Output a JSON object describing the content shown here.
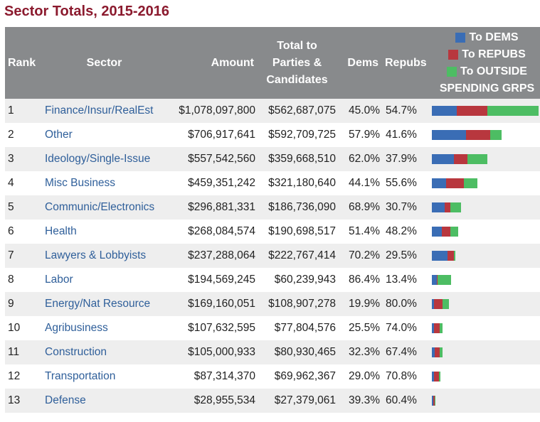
{
  "title": "Sector Totals, 2015-2016",
  "colors": {
    "dems": "#3a6db5",
    "repubs": "#b8373e",
    "outside": "#4dbd63"
  },
  "headers": {
    "rank": "Rank",
    "sector": "Sector",
    "amount": "Amount",
    "total_l1": "Total to",
    "total_l2": "Parties &",
    "total_l3": "Candidates",
    "dems": "Dems",
    "repubs": "Repubs",
    "legend_dems": "To DEMS",
    "legend_repubs": "To REPUBS",
    "legend_outside_l1": "To OUTSIDE",
    "legend_outside_l2": "SPENDING GRPS"
  },
  "rows": [
    {
      "rank": "1",
      "sector": "Finance/Insur/RealEst",
      "amount": "$1,078,097,800",
      "total": "$562,687,075",
      "dems": "45.0%",
      "repubs": "54.7%",
      "amount_value": 1078097800,
      "total_value": 562687075,
      "dems_pct": 45.0,
      "repubs_pct": 54.7
    },
    {
      "rank": "2",
      "sector": "Other",
      "amount": "$706,917,641",
      "total": "$592,709,725",
      "dems": "57.9%",
      "repubs": "41.6%",
      "amount_value": 706917641,
      "total_value": 592709725,
      "dems_pct": 57.9,
      "repubs_pct": 41.6
    },
    {
      "rank": "3",
      "sector": "Ideology/Single-Issue",
      "amount": "$557,542,560",
      "total": "$359,668,510",
      "dems": "62.0%",
      "repubs": "37.9%",
      "amount_value": 557542560,
      "total_value": 359668510,
      "dems_pct": 62.0,
      "repubs_pct": 37.9
    },
    {
      "rank": "4",
      "sector": "Misc Business",
      "amount": "$459,351,242",
      "total": "$321,180,640",
      "dems": "44.1%",
      "repubs": "55.6%",
      "amount_value": 459351242,
      "total_value": 321180640,
      "dems_pct": 44.1,
      "repubs_pct": 55.6
    },
    {
      "rank": "5",
      "sector": "Communic/Electronics",
      "amount": "$296,881,331",
      "total": "$186,736,090",
      "dems": "68.9%",
      "repubs": "30.7%",
      "amount_value": 296881331,
      "total_value": 186736090,
      "dems_pct": 68.9,
      "repubs_pct": 30.7
    },
    {
      "rank": "6",
      "sector": "Health",
      "amount": "$268,084,574",
      "total": "$190,698,517",
      "dems": "51.4%",
      "repubs": "48.2%",
      "amount_value": 268084574,
      "total_value": 190698517,
      "dems_pct": 51.4,
      "repubs_pct": 48.2
    },
    {
      "rank": "7",
      "sector": "Lawyers & Lobbyists",
      "amount": "$237,288,064",
      "total": "$222,767,414",
      "dems": "70.2%",
      "repubs": "29.5%",
      "amount_value": 237288064,
      "total_value": 222767414,
      "dems_pct": 70.2,
      "repubs_pct": 29.5
    },
    {
      "rank": "8",
      "sector": "Labor",
      "amount": "$194,569,245",
      "total": "$60,239,943",
      "dems": "86.4%",
      "repubs": "13.4%",
      "amount_value": 194569245,
      "total_value": 60239943,
      "dems_pct": 86.4,
      "repubs_pct": 13.4
    },
    {
      "rank": "9",
      "sector": "Energy/Nat Resource",
      "amount": "$169,160,051",
      "total": "$108,907,278",
      "dems": "19.9%",
      "repubs": "80.0%",
      "amount_value": 169160051,
      "total_value": 108907278,
      "dems_pct": 19.9,
      "repubs_pct": 80.0
    },
    {
      "rank": "10",
      "sector": "Agribusiness",
      "amount": "$107,632,595",
      "total": "$77,804,576",
      "dems": "25.5%",
      "repubs": "74.0%",
      "amount_value": 107632595,
      "total_value": 77804576,
      "dems_pct": 25.5,
      "repubs_pct": 74.0
    },
    {
      "rank": "11",
      "sector": "Construction",
      "amount": "$105,000,933",
      "total": "$80,930,465",
      "dems": "32.3%",
      "repubs": "67.4%",
      "amount_value": 105000933,
      "total_value": 80930465,
      "dems_pct": 32.3,
      "repubs_pct": 67.4
    },
    {
      "rank": "12",
      "sector": "Transportation",
      "amount": "$87,314,370",
      "total": "$69,962,367",
      "dems": "29.0%",
      "repubs": "70.8%",
      "amount_value": 87314370,
      "total_value": 69962367,
      "dems_pct": 29.0,
      "repubs_pct": 70.8
    },
    {
      "rank": "13",
      "sector": "Defense",
      "amount": "$28,955,534",
      "total": "$27,379,061",
      "dems": "39.3%",
      "repubs": "60.4%",
      "amount_value": 28955534,
      "total_value": 27379061,
      "dems_pct": 39.3,
      "repubs_pct": 60.4
    }
  ]
}
